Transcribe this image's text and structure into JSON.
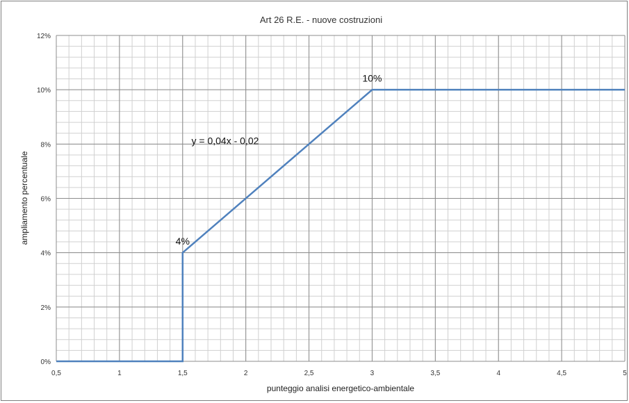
{
  "chart_data": {
    "type": "line",
    "title": "Art 26 R.E. - nuove costruzioni",
    "xlabel": "punteggio analisi energetico-ambientale",
    "ylabel": "ampliamento percentuale",
    "xlim": [
      0.5,
      5
    ],
    "ylim": [
      0,
      12
    ],
    "x_major_step": 0.5,
    "x_minor_step": 0.1,
    "y_major_step": 2,
    "y_minor_step": 0.4,
    "x_tick_labels": [
      "0,5",
      "1",
      "1,5",
      "2",
      "2,5",
      "3",
      "3,5",
      "4",
      "4,5",
      "5"
    ],
    "y_tick_labels": [
      "0%",
      "2%",
      "4%",
      "6%",
      "8%",
      "10%",
      "12%"
    ],
    "grid": true,
    "line_color": "#4f81bd",
    "series": [
      {
        "x": [
          0.5,
          1.5,
          1.5,
          3,
          5
        ],
        "y": [
          0,
          0,
          4,
          10,
          10
        ]
      }
    ],
    "annotations": [
      {
        "text": "y = 0,04x - 0,02",
        "x": 1.57,
        "y": 8
      },
      {
        "text": "4%",
        "x": 1.5,
        "y": 4.3
      },
      {
        "text": "10%",
        "x": 3,
        "y": 10.3
      }
    ]
  }
}
